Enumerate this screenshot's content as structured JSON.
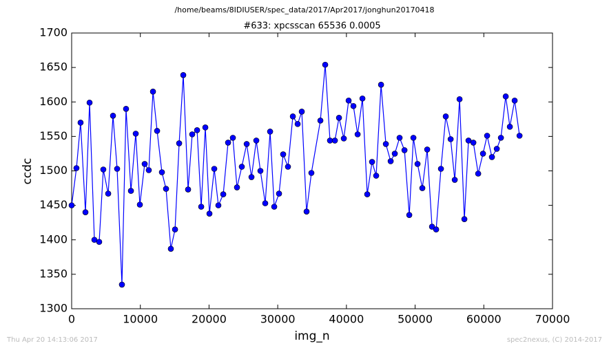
{
  "chart_data": {
    "type": "line",
    "suptitle": "/home/beams/8IDIUSER/spec_data/2017/Apr2017/jonghun20170418",
    "title": "#633: xpcsscan 65536 0.0005",
    "x_label": "img_n",
    "y_label": "ccdc",
    "footer_left": "Thu Apr 20 14:13:06 2017",
    "footer_right": "spec2nexus, (C) 2014-2017",
    "xlim": [
      0,
      70000
    ],
    "xticks": [
      0,
      10000,
      20000,
      30000,
      40000,
      50000,
      60000,
      70000
    ],
    "ylim": [
      1300,
      1700
    ],
    "yticks": [
      1300,
      1350,
      1400,
      1450,
      1500,
      1550,
      1600,
      1650,
      1700
    ],
    "grid": false,
    "x": [
      0,
      700,
      1300,
      2010,
      2610,
      3310,
      4010,
      4610,
      5320,
      6020,
      6620,
      7320,
      7920,
      8630,
      9330,
      9930,
      10630,
      11230,
      11840,
      12440,
      13140,
      13740,
      14440,
      15050,
      15650,
      16250,
      16950,
      17550,
      18260,
      18860,
      19460,
      20060,
      20760,
      21360,
      22070,
      22770,
      23470,
      24070,
      24770,
      25480,
      26180,
      26880,
      27480,
      28180,
      28890,
      29490,
      30190,
      30790,
      31490,
      32200,
      32900,
      33500,
      34200,
      34900,
      36210,
      36910,
      37610,
      38320,
      38920,
      39620,
      40320,
      41020,
      41630,
      42330,
      43030,
      43730,
      44330,
      45040,
      45740,
      46440,
      47040,
      47740,
      48450,
      49150,
      49750,
      50350,
      51050,
      51760,
      52460,
      53060,
      53760,
      54460,
      55170,
      55770,
      56470,
      57170,
      57770,
      58480,
      59180,
      59880,
      60480,
      61180,
      61890,
      62490,
      63190,
      63790,
      64490,
      65200
    ],
    "series": [
      {
        "name": "ccdc",
        "color": "#0000ff",
        "values": [
          1450,
          1504,
          1570,
          1440,
          1599,
          1400,
          1397,
          1502,
          1467,
          1580,
          1503,
          1335,
          1590,
          1471,
          1554,
          1451,
          1510,
          1501,
          1615,
          1558,
          1498,
          1474,
          1387,
          1415,
          1540,
          1639,
          1473,
          1553,
          1559,
          1448,
          1563,
          1438,
          1503,
          1450,
          1466,
          1541,
          1548,
          1476,
          1506,
          1539,
          1491,
          1544,
          1500,
          1453,
          1557,
          1448,
          1467,
          1524,
          1506,
          1579,
          1568,
          1586,
          1441,
          1497,
          1573,
          1654,
          1544,
          1544,
          1577,
          1547,
          1602,
          1594,
          1553,
          1605,
          1466,
          1513,
          1493,
          1625,
          1539,
          1514,
          1525,
          1548,
          1530,
          1436,
          1548,
          1510,
          1475,
          1531,
          1419,
          1415,
          1503,
          1579,
          1546,
          1487,
          1604,
          1430,
          1544,
          1541,
          1496,
          1525,
          1551,
          1520,
          1532,
          1548,
          1608,
          1564,
          1602,
          1551
        ]
      }
    ]
  }
}
